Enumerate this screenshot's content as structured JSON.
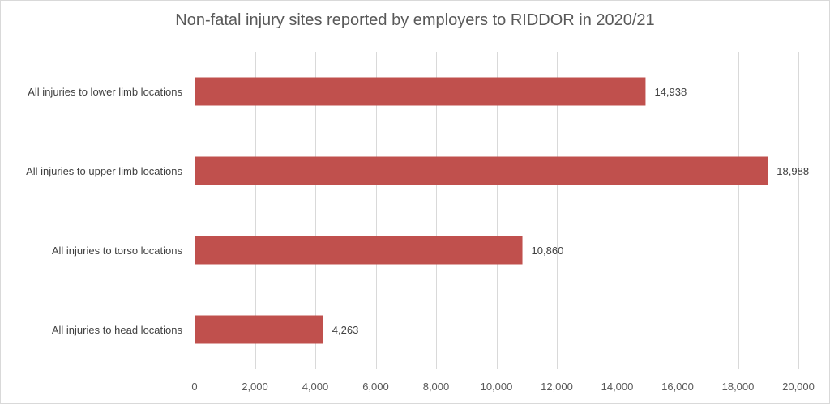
{
  "chart_data": {
    "type": "bar",
    "orientation": "horizontal",
    "title": "Non-fatal injury sites reported by employers to RIDDOR in 2020/21",
    "categories": [
      "All injuries to lower limb locations",
      "All injuries to upper limb locations",
      "All injuries to torso locations",
      "All injuries to head locations"
    ],
    "values": [
      14938,
      18988,
      10860,
      4263
    ],
    "value_labels": [
      "14,938",
      "18,988",
      "10,860",
      "4,263"
    ],
    "xlim": [
      0,
      20000
    ],
    "x_ticks": [
      0,
      2000,
      4000,
      6000,
      8000,
      10000,
      12000,
      14000,
      16000,
      18000,
      20000
    ],
    "x_tick_labels": [
      "0",
      "2,000",
      "4,000",
      "6,000",
      "8,000",
      "10,000",
      "12,000",
      "14,000",
      "16,000",
      "18,000",
      "20,000"
    ],
    "xlabel": "",
    "ylabel": "",
    "grid": "vertical",
    "legend": "none",
    "bar_color": "#c0504d"
  }
}
